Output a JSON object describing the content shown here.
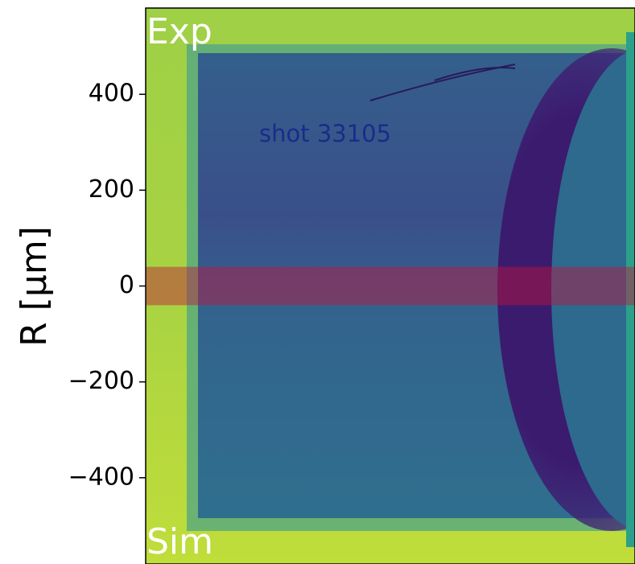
{
  "chart_data": {
    "type": "image",
    "ylabel": "R [μm]",
    "ylim": [
      -580,
      580
    ],
    "yticks": [
      {
        "value": 400,
        "label": "400"
      },
      {
        "value": 200,
        "label": "200"
      },
      {
        "value": 0,
        "label": "0"
      },
      {
        "value": -200,
        "label": "−200"
      },
      {
        "value": -400,
        "label": "−400"
      }
    ],
    "annotations": [
      "Exp",
      "Sim",
      "shot 33105"
    ],
    "band": [
      -40,
      40
    ],
    "band_color": "#c0143c"
  }
}
